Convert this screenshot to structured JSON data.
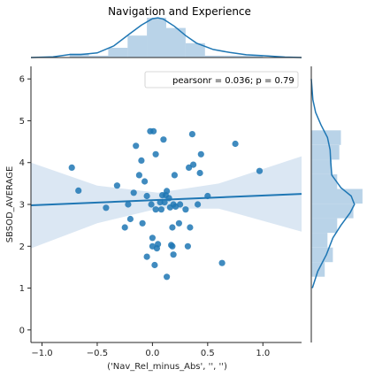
{
  "chart_data": {
    "type": "scatter",
    "title": "Navigation and Experience",
    "xlabel": "('Nav_Rel_minus_Abs', '', '')",
    "ylabel": "SBSOD_AVERAGE",
    "xlim": [
      -1.1,
      1.35
    ],
    "ylim": [
      -0.3,
      6.3
    ],
    "xticks": [
      -1.0,
      -0.5,
      0.0,
      0.5,
      1.0
    ],
    "xtick_labels": [
      "−1.0",
      "−0.5",
      "0.0",
      "0.5",
      "1.0"
    ],
    "yticks": [
      0,
      1,
      2,
      3,
      4,
      5,
      6
    ],
    "ytick_labels": [
      "0",
      "1",
      "2",
      "3",
      "4",
      "5",
      "6"
    ],
    "grid": false,
    "legend": {
      "placement": "top-right",
      "text": "pearsonr = 0.036; p = 0.79"
    },
    "points": [
      [
        -0.73,
        3.88
      ],
      [
        -0.67,
        3.33
      ],
      [
        -0.42,
        2.92
      ],
      [
        -0.32,
        3.45
      ],
      [
        -0.25,
        2.45
      ],
      [
        -0.22,
        3.0
      ],
      [
        -0.2,
        2.65
      ],
      [
        -0.17,
        3.28
      ],
      [
        -0.15,
        4.4
      ],
      [
        -0.12,
        3.7
      ],
      [
        -0.1,
        4.05
      ],
      [
        -0.09,
        2.55
      ],
      [
        -0.07,
        3.55
      ],
      [
        -0.05,
        3.2
      ],
      [
        -0.05,
        1.75
      ],
      [
        -0.02,
        4.75
      ],
      [
        -0.01,
        3.0
      ],
      [
        0.0,
        2.0
      ],
      [
        0.0,
        2.2
      ],
      [
        0.01,
        4.75
      ],
      [
        0.02,
        1.55
      ],
      [
        0.03,
        2.88
      ],
      [
        0.03,
        4.2
      ],
      [
        0.04,
        1.95
      ],
      [
        0.05,
        2.05
      ],
      [
        0.07,
        3.05
      ],
      [
        0.08,
        2.88
      ],
      [
        0.09,
        3.22
      ],
      [
        0.1,
        4.55
      ],
      [
        0.11,
        3.05
      ],
      [
        0.12,
        3.22
      ],
      [
        0.13,
        3.32
      ],
      [
        0.13,
        1.27
      ],
      [
        0.15,
        3.15
      ],
      [
        0.16,
        2.93
      ],
      [
        0.17,
        2.03
      ],
      [
        0.18,
        2.45
      ],
      [
        0.18,
        2.0
      ],
      [
        0.19,
        3.0
      ],
      [
        0.19,
        1.8
      ],
      [
        0.2,
        3.7
      ],
      [
        0.21,
        2.95
      ],
      [
        0.24,
        2.55
      ],
      [
        0.25,
        3.0
      ],
      [
        0.3,
        2.88
      ],
      [
        0.32,
        2.0
      ],
      [
        0.33,
        3.88
      ],
      [
        0.34,
        2.45
      ],
      [
        0.36,
        4.68
      ],
      [
        0.37,
        3.95
      ],
      [
        0.41,
        3.0
      ],
      [
        0.43,
        3.75
      ],
      [
        0.44,
        4.2
      ],
      [
        0.5,
        3.2
      ],
      [
        0.63,
        1.6
      ],
      [
        0.75,
        4.45
      ],
      [
        0.97,
        3.8
      ]
    ],
    "regression": {
      "x": [
        -1.1,
        1.35
      ],
      "y": [
        2.98,
        3.25
      ]
    },
    "confidence_band": {
      "x": [
        -1.1,
        -0.5,
        0.05,
        0.6,
        1.35
      ],
      "upper": [
        4.0,
        3.45,
        3.28,
        3.5,
        4.15
      ],
      "lower": [
        1.95,
        2.55,
        2.9,
        2.9,
        2.35
      ]
    },
    "marginal_x_hist": {
      "bin_edges": [
        -0.75,
        -0.575,
        -0.4,
        -0.225,
        -0.05,
        0.125,
        0.3,
        0.475,
        0.65,
        0.825,
        1.0
      ],
      "densities": [
        0.18,
        0.08,
        0.42,
        0.95,
        1.72,
        1.28,
        0.62,
        0.08,
        0.08,
        0.08
      ]
    },
    "marginal_x_kde": {
      "x": [
        -1.1,
        -0.9,
        -0.75,
        -0.65,
        -0.5,
        -0.35,
        -0.2,
        -0.1,
        0.0,
        0.05,
        0.1,
        0.2,
        0.3,
        0.4,
        0.55,
        0.7,
        0.85,
        1.0,
        1.2,
        1.35
      ],
      "y": [
        0.0,
        0.03,
        0.13,
        0.13,
        0.2,
        0.5,
        1.05,
        1.4,
        1.68,
        1.72,
        1.66,
        1.35,
        0.95,
        0.62,
        0.35,
        0.22,
        0.12,
        0.08,
        0.02,
        0.0
      ]
    },
    "marginal_y_hist": {
      "bin_edges": [
        1.27,
        1.62,
        1.97,
        2.32,
        2.67,
        3.02,
        3.37,
        3.72,
        4.07,
        4.42,
        4.77
      ],
      "densities": [
        0.25,
        0.4,
        0.3,
        0.48,
        0.78,
        0.95,
        0.48,
        0.38,
        0.52,
        0.55
      ]
    },
    "marginal_y_kde": {
      "y": [
        1.0,
        1.4,
        1.8,
        2.2,
        2.5,
        2.8,
        3.0,
        3.2,
        3.4,
        3.7,
        4.0,
        4.3,
        4.6,
        4.9,
        5.2,
        5.5,
        6.0
      ],
      "x": [
        0.02,
        0.12,
        0.28,
        0.4,
        0.55,
        0.72,
        0.8,
        0.74,
        0.55,
        0.38,
        0.36,
        0.35,
        0.3,
        0.18,
        0.08,
        0.03,
        0.0
      ]
    }
  },
  "colors": {
    "marker": "#1f77b4",
    "regression_line": "#1f77b4",
    "band": "#c8daec",
    "hist": "#a8c8e2",
    "kde": "#1f77b4",
    "axis": "#262626"
  }
}
